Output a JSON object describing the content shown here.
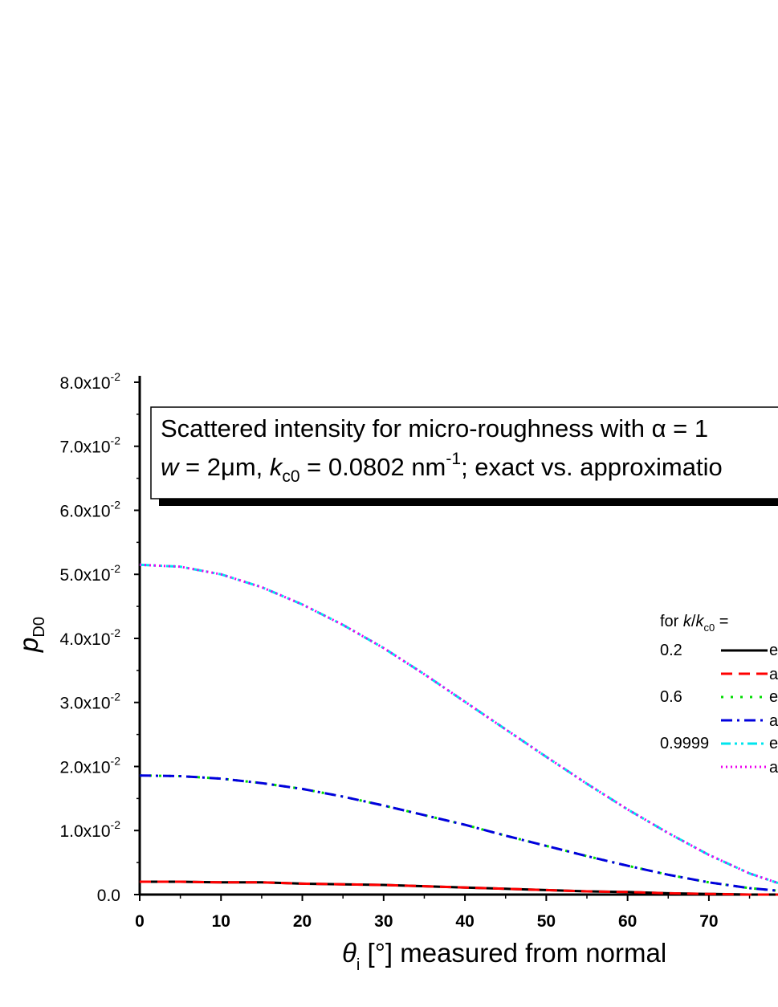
{
  "chart_data": {
    "type": "line",
    "xlabel": "θi [°] measured from normal",
    "xlabel_parts": {
      "symbol": "θ",
      "sub": "i",
      "rest": " [°] measured from normal"
    },
    "ylabel": "pD0",
    "ylabel_parts": {
      "symbol": "p",
      "sub": "D0"
    },
    "xlim": [
      0,
      78.5
    ],
    "ylim": [
      0,
      0.081
    ],
    "x_ticks": [
      0,
      10,
      20,
      30,
      40,
      50,
      60,
      70
    ],
    "x_tick_labels": [
      "0",
      "10",
      "20",
      "30",
      "40",
      "50",
      "60",
      "70"
    ],
    "y_ticks": [
      0,
      0.01,
      0.02,
      0.03,
      0.04,
      0.05,
      0.06,
      0.07,
      0.08
    ],
    "y_tick_labels": [
      {
        "mant": "0.0",
        "exp": ""
      },
      {
        "mant": "1.0x10",
        "exp": "-2"
      },
      {
        "mant": "2.0x10",
        "exp": "-2"
      },
      {
        "mant": "3.0x10",
        "exp": "-2"
      },
      {
        "mant": "4.0x10",
        "exp": "-2"
      },
      {
        "mant": "5.0x10",
        "exp": "-2"
      },
      {
        "mant": "6.0x10",
        "exp": "-2"
      },
      {
        "mant": "7.0x10",
        "exp": "-2"
      },
      {
        "mant": "8.0x10",
        "exp": "-2"
      }
    ],
    "grid": false,
    "annotation": {
      "line1": "Scattered intensity for micro-roughness with α = 1",
      "line2_parts": [
        "w",
        " = 2μm, ",
        "k",
        "c0",
        " = 0.0802 nm",
        "-1",
        "; exact vs. approximatio"
      ]
    },
    "legend": {
      "placement": "right",
      "title_parts": [
        "for ",
        "k",
        "/",
        "k",
        "c0",
        " ="
      ],
      "group_labels": [
        "0.2",
        "0.6",
        "0.9999"
      ],
      "entry_texts": [
        "e",
        "a",
        "e",
        "a",
        "e",
        "a"
      ]
    },
    "x": [
      0,
      5,
      10,
      15,
      20,
      25,
      30,
      35,
      40,
      45,
      50,
      55,
      60,
      65,
      70,
      75,
      78.5
    ],
    "series": [
      {
        "color": "#000000",
        "style": "solid",
        "width": 3,
        "values": [
          0.002,
          0.002,
          0.0019,
          0.0019,
          0.0017,
          0.0016,
          0.0015,
          0.0013,
          0.0011,
          0.0009,
          0.0007,
          0.0005,
          0.0004,
          0.0002,
          0.0001,
          0.0,
          0.0
        ]
      },
      {
        "color": "#ff0000",
        "style": "dash",
        "width": 3,
        "values": [
          0.002,
          0.002,
          0.0019,
          0.0019,
          0.0017,
          0.0016,
          0.0015,
          0.0013,
          0.0011,
          0.0009,
          0.0007,
          0.0005,
          0.0004,
          0.0002,
          0.0001,
          0.0,
          0.0
        ]
      },
      {
        "color": "#00dd00",
        "style": "dot",
        "width": 3,
        "values": [
          0.0186,
          0.0185,
          0.0181,
          0.0174,
          0.0165,
          0.0153,
          0.0139,
          0.0124,
          0.0109,
          0.0092,
          0.0076,
          0.006,
          0.0045,
          0.0031,
          0.0019,
          0.001,
          0.0006
        ]
      },
      {
        "color": "#0000dd",
        "style": "dashdot",
        "width": 3,
        "values": [
          0.0186,
          0.0185,
          0.0181,
          0.0174,
          0.0165,
          0.0153,
          0.0139,
          0.0124,
          0.0109,
          0.0092,
          0.0076,
          0.006,
          0.0045,
          0.0031,
          0.0019,
          0.001,
          0.0006
        ]
      },
      {
        "color": "#00e5ee",
        "style": "dashdotdot",
        "width": 3,
        "values": [
          0.0515,
          0.0512,
          0.05,
          0.048,
          0.0453,
          0.0421,
          0.0385,
          0.0344,
          0.0301,
          0.0258,
          0.0215,
          0.0173,
          0.0133,
          0.0096,
          0.0062,
          0.0033,
          0.0018
        ]
      },
      {
        "color": "#ee00ee",
        "style": "shortdot",
        "width": 3,
        "values": [
          0.0515,
          0.0512,
          0.05,
          0.048,
          0.0453,
          0.0421,
          0.0385,
          0.0344,
          0.0301,
          0.0258,
          0.0215,
          0.0173,
          0.0133,
          0.0096,
          0.0062,
          0.0033,
          0.0018
        ]
      }
    ]
  }
}
